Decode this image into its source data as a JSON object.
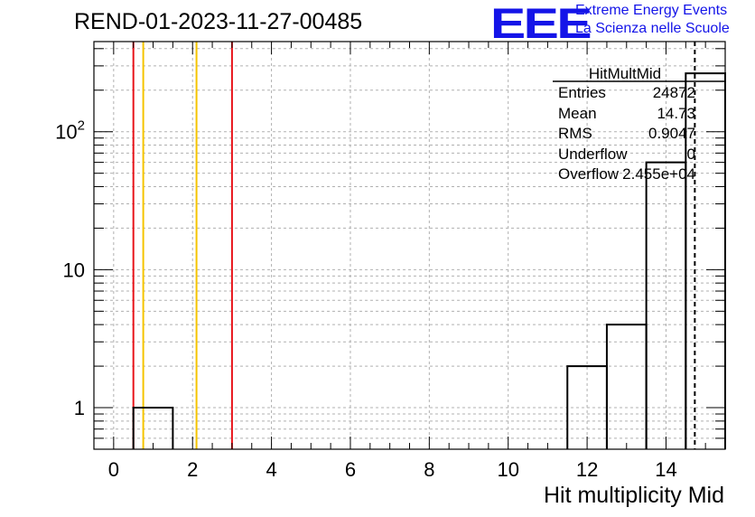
{
  "title": "REND-01-2023-11-27-00485",
  "logo": {
    "text": "EEE",
    "line1": "Extreme Energy Events",
    "line2": "La Scienza nelle Scuole",
    "color": "#1414e8"
  },
  "stats": {
    "name": "HitMultMid",
    "rows": [
      {
        "label": "Entries",
        "value": "24872"
      },
      {
        "label": "Mean",
        "value": "14.73"
      },
      {
        "label": "RMS",
        "value": "0.9047"
      },
      {
        "label": "Underflow",
        "value": "0"
      },
      {
        "label": "Overflow",
        "value": "2.455e+04"
      }
    ]
  },
  "chart_data": {
    "type": "histogram",
    "title": "REND-01-2023-11-27-00485",
    "xlabel": "Hit multiplicity Mid",
    "ylabel": "",
    "xlim": [
      -0.5,
      15.5
    ],
    "ylim": [
      0.5,
      450
    ],
    "yscale": "log",
    "grid": true,
    "xticks": [
      0,
      2,
      4,
      6,
      8,
      10,
      12,
      14
    ],
    "xtick_labels": [
      "0",
      "2",
      "4",
      "6",
      "8",
      "10",
      "12",
      "14"
    ],
    "yticks": [
      1,
      10,
      100
    ],
    "ytick_labels": [
      "1",
      "10",
      "10^2"
    ],
    "bins": [
      {
        "x0": 0.5,
        "x1": 1.5,
        "count": 1
      },
      {
        "x0": 11.5,
        "x1": 12.5,
        "count": 2
      },
      {
        "x0": 12.5,
        "x1": 13.5,
        "count": 4
      },
      {
        "x0": 13.5,
        "x1": 14.5,
        "count": 60
      },
      {
        "x0": 14.5,
        "x1": 15.5,
        "count": 265
      }
    ],
    "vertical_lines": [
      {
        "x": 0.5,
        "color": "#e8141a",
        "style": "solid"
      },
      {
        "x": 0.75,
        "color": "#f5c400",
        "style": "solid"
      },
      {
        "x": 2.1,
        "color": "#f5c400",
        "style": "solid"
      },
      {
        "x": 3.0,
        "color": "#e8141a",
        "style": "solid"
      },
      {
        "x": 14.73,
        "color": "#000000",
        "style": "dashed"
      }
    ]
  }
}
